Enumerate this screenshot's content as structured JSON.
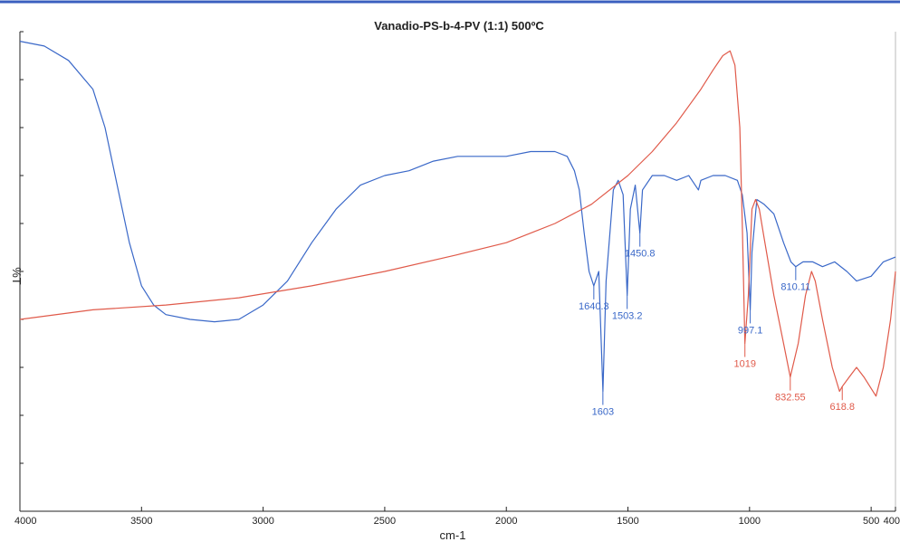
{
  "chart_data": {
    "type": "line",
    "title": "Vanadio-PS-b-4-PV (1:1) 500ºC",
    "xlabel": "cm-1",
    "ylabel": "%T",
    "xlim": [
      4000,
      400
    ],
    "ylim": [
      0,
      100
    ],
    "x_reversed": true,
    "grid": false,
    "x_tick_labels": [
      "4000",
      "3500",
      "3000",
      "2500",
      "2000",
      "1500",
      "1000",
      "500",
      "400"
    ],
    "x_ticks": [
      4000,
      3500,
      3000,
      2500,
      2000,
      1500,
      1000,
      500,
      400
    ],
    "series": [
      {
        "color": "#3a68c8",
        "points": [
          [
            4000,
            98
          ],
          [
            3900,
            97
          ],
          [
            3800,
            94
          ],
          [
            3700,
            88
          ],
          [
            3650,
            80
          ],
          [
            3600,
            68
          ],
          [
            3550,
            56
          ],
          [
            3500,
            47
          ],
          [
            3450,
            43
          ],
          [
            3400,
            41
          ],
          [
            3300,
            40
          ],
          [
            3200,
            39.5
          ],
          [
            3100,
            40
          ],
          [
            3000,
            43
          ],
          [
            2900,
            48
          ],
          [
            2800,
            56
          ],
          [
            2700,
            63
          ],
          [
            2600,
            68
          ],
          [
            2500,
            70
          ],
          [
            2400,
            71
          ],
          [
            2300,
            73
          ],
          [
            2200,
            74
          ],
          [
            2100,
            74
          ],
          [
            2000,
            74
          ],
          [
            1900,
            75
          ],
          [
            1800,
            75
          ],
          [
            1750,
            74
          ],
          [
            1720,
            71
          ],
          [
            1700,
            67
          ],
          [
            1680,
            58
          ],
          [
            1660,
            50
          ],
          [
            1640.3,
            47
          ],
          [
            1620,
            50
          ],
          [
            1603,
            25
          ],
          [
            1590,
            48
          ],
          [
            1560,
            67
          ],
          [
            1540,
            69
          ],
          [
            1520,
            66
          ],
          [
            1503.2,
            45
          ],
          [
            1490,
            63
          ],
          [
            1470,
            68
          ],
          [
            1450.8,
            58
          ],
          [
            1440,
            67
          ],
          [
            1400,
            70
          ],
          [
            1350,
            70
          ],
          [
            1300,
            69
          ],
          [
            1250,
            70
          ],
          [
            1210,
            67
          ],
          [
            1200,
            69
          ],
          [
            1150,
            70
          ],
          [
            1100,
            70
          ],
          [
            1050,
            69
          ],
          [
            1030,
            66
          ],
          [
            1010,
            58
          ],
          [
            997.1,
            42
          ],
          [
            990,
            54
          ],
          [
            970,
            65
          ],
          [
            940,
            64
          ],
          [
            900,
            62
          ],
          [
            860,
            56
          ],
          [
            830,
            52
          ],
          [
            810.11,
            51
          ],
          [
            780,
            52
          ],
          [
            740,
            52
          ],
          [
            700,
            51
          ],
          [
            650,
            52
          ],
          [
            600,
            50
          ],
          [
            560,
            48
          ],
          [
            500,
            49
          ],
          [
            450,
            52
          ],
          [
            400,
            53
          ]
        ]
      },
      {
        "color": "#e05a4a",
        "points": [
          [
            4000,
            40
          ],
          [
            3700,
            42
          ],
          [
            3400,
            43
          ],
          [
            3100,
            44.5
          ],
          [
            2800,
            47
          ],
          [
            2500,
            50
          ],
          [
            2200,
            53.5
          ],
          [
            2000,
            56
          ],
          [
            1800,
            60
          ],
          [
            1650,
            64
          ],
          [
            1500,
            70
          ],
          [
            1400,
            75
          ],
          [
            1300,
            81
          ],
          [
            1200,
            88
          ],
          [
            1150,
            92
          ],
          [
            1110,
            95
          ],
          [
            1080,
            96
          ],
          [
            1060,
            93
          ],
          [
            1040,
            80
          ],
          [
            1030,
            60
          ],
          [
            1019,
            35
          ],
          [
            1005,
            45
          ],
          [
            990,
            63
          ],
          [
            975,
            65
          ],
          [
            960,
            63
          ],
          [
            940,
            57
          ],
          [
            900,
            45
          ],
          [
            860,
            35
          ],
          [
            832.55,
            28
          ],
          [
            800,
            35
          ],
          [
            770,
            45
          ],
          [
            745,
            50
          ],
          [
            730,
            48
          ],
          [
            700,
            40
          ],
          [
            660,
            30
          ],
          [
            630,
            25
          ],
          [
            618.8,
            26
          ],
          [
            590,
            28
          ],
          [
            560,
            30
          ],
          [
            530,
            28
          ],
          [
            480,
            24
          ],
          [
            450,
            30
          ],
          [
            420,
            40
          ],
          [
            400,
            50
          ]
        ]
      }
    ],
    "annotations": [
      {
        "label": "1640.3",
        "x": 1640.3,
        "y": 47,
        "color": "#3a68c8"
      },
      {
        "label": "1603",
        "x": 1603,
        "y": 25,
        "color": "#3a68c8"
      },
      {
        "label": "1503.2",
        "x": 1503.2,
        "y": 45,
        "color": "#3a68c8"
      },
      {
        "label": "1450.8",
        "x": 1450.8,
        "y": 58,
        "color": "#3a68c8"
      },
      {
        "label": "997.1",
        "x": 997.1,
        "y": 42,
        "color": "#3a68c8"
      },
      {
        "label": "810.11",
        "x": 810.11,
        "y": 51,
        "color": "#3a68c8"
      },
      {
        "label": "1019",
        "x": 1019,
        "y": 35,
        "color": "#e05a4a"
      },
      {
        "label": "832.55",
        "x": 832.55,
        "y": 28,
        "color": "#e05a4a"
      },
      {
        "label": "618.8",
        "x": 618.8,
        "y": 26,
        "color": "#e05a4a"
      }
    ]
  }
}
